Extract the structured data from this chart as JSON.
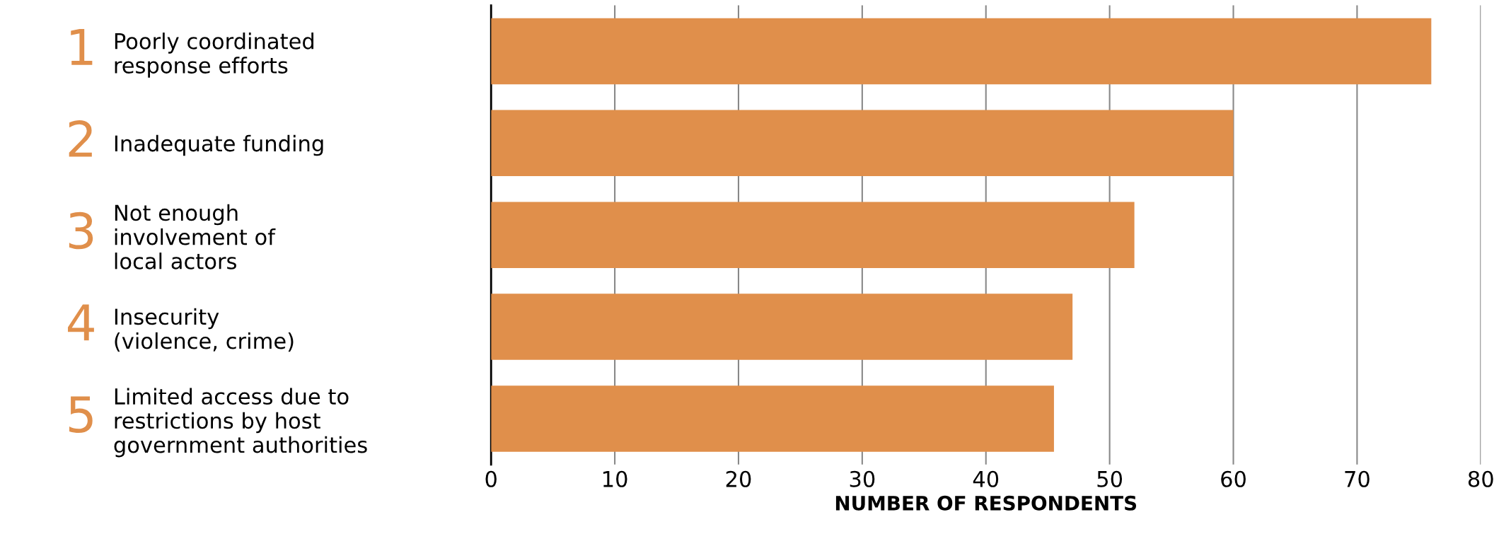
{
  "chart_data": {
    "type": "bar",
    "orientation": "horizontal",
    "categories": [
      "Poorly coordinated\nresponse efforts",
      "Inadequate funding",
      "Not enough\ninvolvement of\nlocal actors",
      "Insecurity\n(violence, crime)",
      "Limited access due to\nrestrictions by host\ngovernment authorities"
    ],
    "values": [
      76,
      60,
      52,
      47,
      45.5
    ],
    "color": "#e08f4b",
    "annotations": [
      "1",
      "2",
      "3",
      "4",
      "5"
    ],
    "xlabel": "NUMBER OF RESPONDENTS",
    "xlim": [
      0,
      80
    ],
    "xticks": [
      0,
      10,
      20,
      30,
      40,
      50,
      60,
      70,
      80
    ],
    "grid": "x"
  }
}
